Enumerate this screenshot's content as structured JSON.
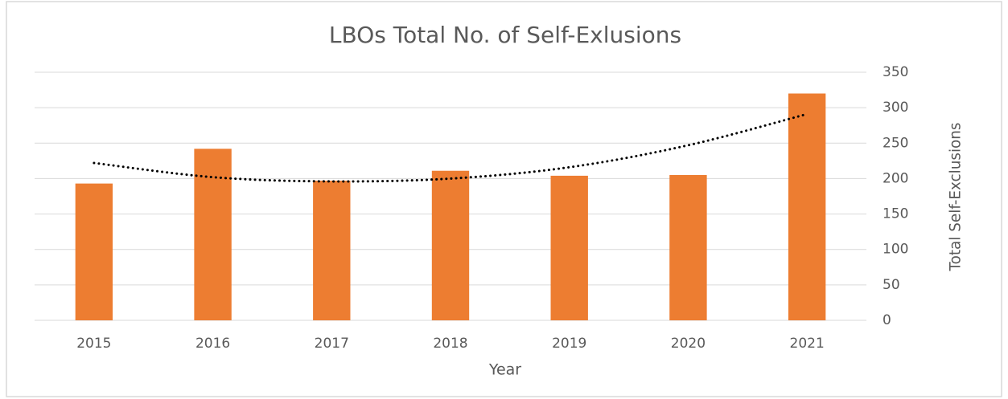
{
  "chart_data": {
    "type": "bar",
    "title": "LBOs Total No. of Self-Exlusions",
    "xlabel": "Year",
    "ylabel": "Total Self-Exclusions",
    "categories": [
      "2015",
      "2016",
      "2017",
      "2018",
      "2019",
      "2020",
      "2021"
    ],
    "values": [
      193,
      242,
      197,
      211,
      204,
      205,
      320
    ],
    "color": "#ed7d31",
    "ylim": [
      0,
      350
    ],
    "yticks": [
      0,
      50,
      100,
      150,
      200,
      250,
      300,
      350
    ],
    "y_axis_side": "right",
    "grid": true,
    "trendline": {
      "values": [
        222,
        202,
        196,
        200,
        216,
        247,
        291
      ],
      "color": "#000000",
      "style": "dotted"
    }
  }
}
